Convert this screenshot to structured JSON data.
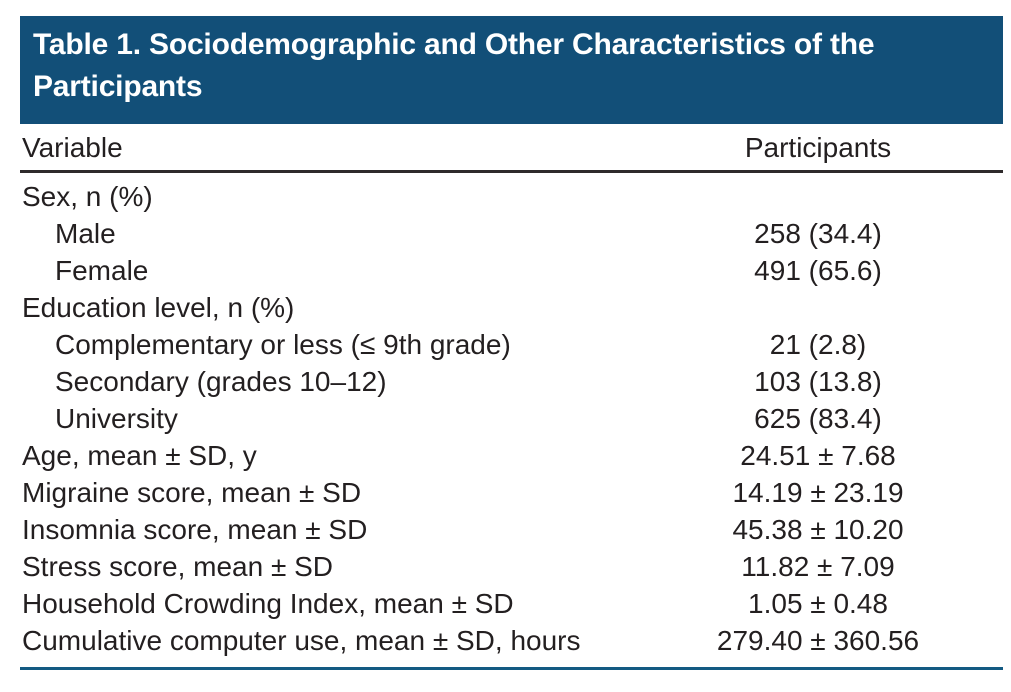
{
  "title": {
    "line1": "Table 1. Sociodemographic and Other Characteristics of the",
    "line2": "Participants"
  },
  "table": {
    "columns": {
      "variable": "Variable",
      "participants": "Participants"
    },
    "rows": [
      {
        "label": "Sex, n (%)",
        "value": "",
        "indent": 0
      },
      {
        "label": "Male",
        "value": "258 (34.4)",
        "indent": 1
      },
      {
        "label": "Female",
        "value": "491 (65.6)",
        "indent": 1
      },
      {
        "label": "Education level, n (%)",
        "value": "",
        "indent": 0
      },
      {
        "label": "Complementary or less (≤ 9th grade)",
        "value": "21 (2.8)",
        "indent": 1
      },
      {
        "label": "Secondary (grades 10–12)",
        "value": "103 (13.8)",
        "indent": 1
      },
      {
        "label": "University",
        "value": "625 (83.4)",
        "indent": 1
      },
      {
        "label": "Age, mean ± SD, y",
        "value": "24.51 ± 7.68",
        "indent": 0
      },
      {
        "label": "Migraine score, mean ± SD",
        "value": "14.19 ± 23.19",
        "indent": 0
      },
      {
        "label": "Insomnia score, mean ± SD",
        "value": "45.38 ± 10.20",
        "indent": 0
      },
      {
        "label": "Stress score, mean ± SD",
        "value": "11.82 ± 7.09",
        "indent": 0
      },
      {
        "label": "Household Crowding Index, mean ± SD",
        "value": "1.05 ± 0.48",
        "indent": 0
      },
      {
        "label": "Cumulative computer use, mean ± SD, hours",
        "value": "279.40 ± 360.56",
        "indent": 0
      }
    ]
  },
  "colors": {
    "title_bar_bg": "#124f78",
    "title_text": "#ffffff",
    "body_text": "#231f20",
    "column_header_rule": "#2e2a2b",
    "bottom_rule": "#135a82",
    "page_bg": "#ffffff"
  }
}
